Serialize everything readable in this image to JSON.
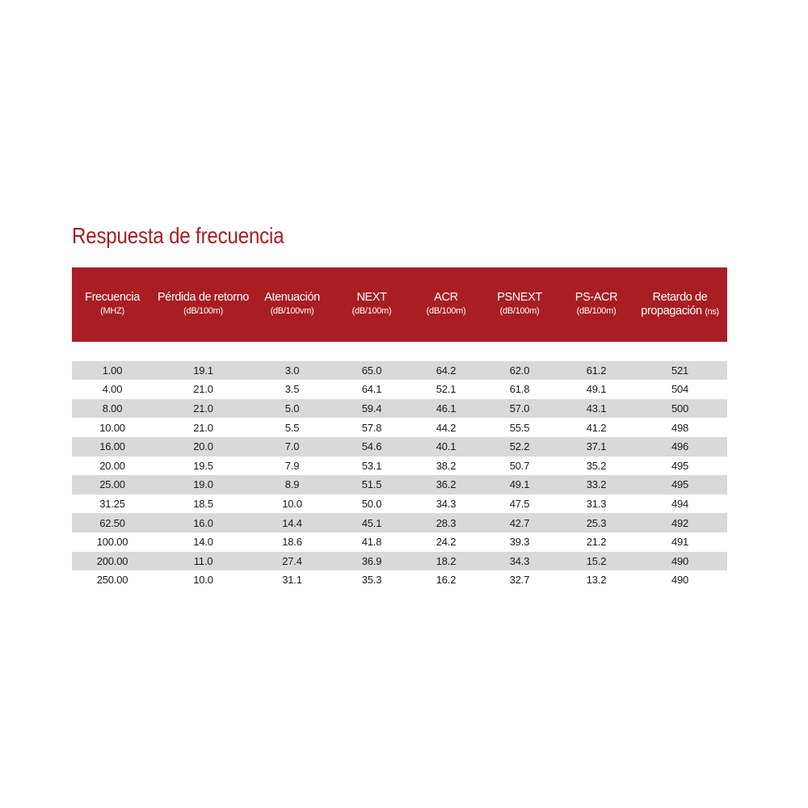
{
  "title": "Respuesta de frecuencia",
  "columns": [
    {
      "name": "Frecuencia",
      "unit": "(MHZ)"
    },
    {
      "name": "Pérdida de retorno",
      "unit": "(dB/100m)"
    },
    {
      "name": "Atenuación",
      "unit": "(dB/100vm)"
    },
    {
      "name": "NEXT",
      "unit": "(dB/100m)"
    },
    {
      "name": "ACR",
      "unit": "(dB/100m)"
    },
    {
      "name": "PSNEXT",
      "unit": "(dB/100m)"
    },
    {
      "name": "PS-ACR",
      "unit": "(dB/100m)"
    },
    {
      "name": "Retardo de",
      "name2": "propagación",
      "unit": "(ns)"
    }
  ],
  "rows": [
    [
      "1.00",
      "19.1",
      "3.0",
      "65.0",
      "64.2",
      "62.0",
      "61.2",
      "521"
    ],
    [
      "4.00",
      "21.0",
      "3.5",
      "64.1",
      "52.1",
      "61.8",
      "49.1",
      "504"
    ],
    [
      "8.00",
      "21.0",
      "5.0",
      "59.4",
      "46.1",
      "57.0",
      "43.1",
      "500"
    ],
    [
      "10.00",
      "21.0",
      "5.5",
      "57.8",
      "44.2",
      "55.5",
      "41.2",
      "498"
    ],
    [
      "16.00",
      "20.0",
      "7.0",
      "54.6",
      "40.1",
      "52.2",
      "37.1",
      "496"
    ],
    [
      "20.00",
      "19.5",
      "7.9",
      "53.1",
      "38.2",
      "50.7",
      "35.2",
      "495"
    ],
    [
      "25.00",
      "19.0",
      "8.9",
      "51.5",
      "36.2",
      "49.1",
      "33.2",
      "495"
    ],
    [
      "31.25",
      "18.5",
      "10.0",
      "50.0",
      "34.3",
      "47.5",
      "31.3",
      "494"
    ],
    [
      "62.50",
      "16.0",
      "14.4",
      "45.1",
      "28.3",
      "42.7",
      "25.3",
      "492"
    ],
    [
      "100.00",
      "14.0",
      "18.6",
      "41.8",
      "24.2",
      "39.3",
      "21.2",
      "491"
    ],
    [
      "200.00",
      "11.0",
      "27.4",
      "36.9",
      "18.2",
      "34.3",
      "15.2",
      "490"
    ],
    [
      "250.00",
      "10.0",
      "31.1",
      "35.3",
      "16.2",
      "32.7",
      "13.2",
      "490"
    ]
  ],
  "colors": {
    "accent": "#a81e23",
    "row_stripe": "#d9d9d9"
  }
}
